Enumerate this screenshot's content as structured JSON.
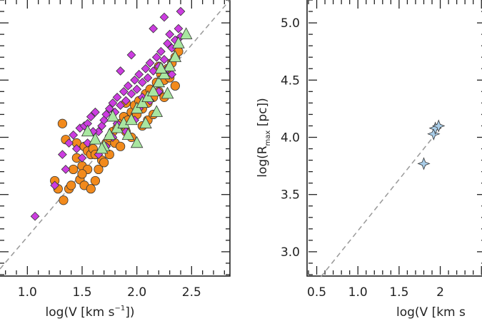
{
  "chart_data": [
    {
      "type": "scatter",
      "xlabel": {
        "pre": "log(V [km s",
        "sup": "−1",
        "post": "])"
      },
      "ylabel": "",
      "xlim": [
        0.75,
        2.85
      ],
      "ylim": [
        2.8,
        5.2
      ],
      "xticks": [
        "1.0",
        "1.5",
        "2.0",
        "2.5"
      ],
      "xtick_values": [
        1.0,
        1.5,
        2.0,
        2.5
      ],
      "yticks": [],
      "grid": false,
      "reference_line": {
        "style": "dashed",
        "points": [
          [
            0.75,
            2.85
          ],
          [
            2.85,
            5.2
          ]
        ]
      },
      "series": [
        {
          "marker": "circle",
          "color": "#f28a1c",
          "points": [
            [
              1.32,
              4.12
            ],
            [
              1.35,
              3.98
            ],
            [
              1.45,
              3.95
            ],
            [
              1.52,
              3.92
            ],
            [
              1.55,
              3.88
            ],
            [
              1.58,
              3.85
            ],
            [
              1.5,
              3.75
            ],
            [
              1.55,
              3.72
            ],
            [
              1.48,
              3.63
            ],
            [
              1.52,
              3.58
            ],
            [
              1.58,
              3.55
            ],
            [
              1.62,
              3.62
            ],
            [
              1.65,
              3.72
            ],
            [
              1.68,
              3.8
            ],
            [
              1.7,
              3.9
            ],
            [
              1.72,
              3.95
            ],
            [
              1.75,
              4.0
            ],
            [
              1.78,
              4.05
            ],
            [
              1.8,
              3.95
            ],
            [
              1.82,
              4.08
            ],
            [
              1.85,
              4.12
            ],
            [
              1.88,
              4.18
            ],
            [
              1.9,
              4.05
            ],
            [
              1.92,
              4.15
            ],
            [
              1.95,
              4.22
            ],
            [
              1.98,
              4.28
            ],
            [
              2.0,
              4.2
            ],
            [
              2.02,
              4.32
            ],
            [
              2.05,
              4.25
            ],
            [
              2.08,
              4.38
            ],
            [
              2.1,
              4.3
            ],
            [
              2.12,
              4.42
            ],
            [
              2.15,
              4.35
            ],
            [
              2.18,
              4.48
            ],
            [
              2.2,
              4.4
            ],
            [
              2.22,
              4.55
            ],
            [
              2.25,
              4.5
            ],
            [
              2.28,
              4.6
            ],
            [
              2.3,
              4.52
            ],
            [
              2.32,
              4.65
            ],
            [
              2.35,
              4.7
            ],
            [
              1.42,
              3.72
            ],
            [
              1.38,
              3.55
            ],
            [
              1.33,
              3.45
            ],
            [
              1.45,
              3.82
            ],
            [
              1.6,
              3.9
            ],
            [
              1.75,
              3.85
            ],
            [
              1.95,
              4.0
            ],
            [
              2.1,
              4.15
            ],
            [
              2.25,
              4.35
            ],
            [
              1.25,
              3.62
            ],
            [
              1.28,
              3.55
            ],
            [
              1.4,
              3.58
            ],
            [
              1.62,
              3.85
            ],
            [
              1.85,
              3.92
            ],
            [
              2.05,
              4.1
            ],
            [
              2.35,
              4.45
            ],
            [
              1.5,
              3.68
            ],
            [
              1.7,
              3.78
            ],
            [
              1.9,
              4.3
            ],
            [
              2.15,
              4.2
            ],
            [
              2.38,
              4.75
            ],
            [
              2.2,
              4.62
            ]
          ]
        },
        {
          "marker": "diamond",
          "color": "#cc3de0",
          "points": [
            [
              1.07,
              3.31
            ],
            [
              1.25,
              3.58
            ],
            [
              1.32,
              3.85
            ],
            [
              1.38,
              3.95
            ],
            [
              1.42,
              4.02
            ],
            [
              1.48,
              4.08
            ],
            [
              1.52,
              4.1
            ],
            [
              1.55,
              4.12
            ],
            [
              1.58,
              4.18
            ],
            [
              1.62,
              4.22
            ],
            [
              1.65,
              4.05
            ],
            [
              1.68,
              4.1
            ],
            [
              1.7,
              4.15
            ],
            [
              1.72,
              4.2
            ],
            [
              1.75,
              4.25
            ],
            [
              1.78,
              4.3
            ],
            [
              1.8,
              4.22
            ],
            [
              1.82,
              4.35
            ],
            [
              1.85,
              4.28
            ],
            [
              1.88,
              4.4
            ],
            [
              1.9,
              4.32
            ],
            [
              1.92,
              4.45
            ],
            [
              1.95,
              4.38
            ],
            [
              1.98,
              4.5
            ],
            [
              2.0,
              4.42
            ],
            [
              2.02,
              4.55
            ],
            [
              2.05,
              4.48
            ],
            [
              2.08,
              4.6
            ],
            [
              2.1,
              4.52
            ],
            [
              2.12,
              4.65
            ],
            [
              2.15,
              4.58
            ],
            [
              2.18,
              4.7
            ],
            [
              2.2,
              4.62
            ],
            [
              2.22,
              4.75
            ],
            [
              2.25,
              4.68
            ],
            [
              2.28,
              4.82
            ],
            [
              2.3,
              4.9
            ],
            [
              2.32,
              4.78
            ],
            [
              2.35,
              4.85
            ],
            [
              2.38,
              4.95
            ],
            [
              2.4,
              5.1
            ],
            [
              2.25,
              5.05
            ],
            [
              2.15,
              4.95
            ],
            [
              1.95,
              4.72
            ],
            [
              1.85,
              4.58
            ],
            [
              1.6,
              4.05
            ],
            [
              1.45,
              3.9
            ],
            [
              1.35,
              3.72
            ],
            [
              1.55,
              3.95
            ],
            [
              1.78,
              4.0
            ],
            [
              2.02,
              4.25
            ],
            [
              2.2,
              4.4
            ],
            [
              2.32,
              4.55
            ],
            [
              1.65,
              3.85
            ],
            [
              1.9,
              4.05
            ],
            [
              2.12,
              4.32
            ],
            [
              1.72,
              3.92
            ],
            [
              1.98,
              4.15
            ],
            [
              2.28,
              4.6
            ],
            [
              2.05,
              4.35
            ],
            [
              1.82,
              4.12
            ],
            [
              2.4,
              4.88
            ],
            [
              1.5,
              3.82
            ]
          ]
        },
        {
          "marker": "triangle",
          "color": "#a8e6a0",
          "points": [
            [
              1.55,
              4.05
            ],
            [
              1.62,
              3.98
            ],
            [
              1.7,
              3.92
            ],
            [
              1.75,
              4.02
            ],
            [
              1.82,
              4.08
            ],
            [
              1.88,
              4.12
            ],
            [
              1.95,
              4.15
            ],
            [
              2.0,
              4.25
            ],
            [
              2.05,
              4.3
            ],
            [
              2.1,
              4.35
            ],
            [
              2.15,
              4.4
            ],
            [
              2.2,
              4.48
            ],
            [
              2.25,
              4.55
            ],
            [
              2.3,
              4.62
            ],
            [
              2.38,
              4.82
            ],
            [
              2.45,
              4.9
            ],
            [
              1.92,
              4.02
            ],
            [
              2.18,
              4.22
            ],
            [
              2.28,
              4.38
            ],
            [
              1.68,
              3.9
            ],
            [
              2.35,
              4.7
            ],
            [
              2.0,
              3.95
            ],
            [
              2.08,
              4.12
            ],
            [
              1.78,
              4.18
            ],
            [
              2.22,
              4.6
            ]
          ]
        }
      ]
    },
    {
      "type": "scatter",
      "xlabel": {
        "pre": "log(V [km s",
        "sup": "",
        "post": ""
      },
      "ylabel": {
        "pre": "log(R",
        "sub": "max",
        "post": " [pc])"
      },
      "xlim": [
        0.4,
        2.55
      ],
      "ylim": [
        2.8,
        5.2
      ],
      "xticks": [
        "0.5",
        "1.0",
        "1.5",
        "2"
      ],
      "xtick_values": [
        0.5,
        1.0,
        1.5,
        2.0
      ],
      "yticks": [
        "3.0",
        "3.5",
        "4.0",
        "4.5",
        "5.0"
      ],
      "ytick_values": [
        3.0,
        3.5,
        4.0,
        4.5,
        5.0
      ],
      "grid": false,
      "reference_line": {
        "style": "dashed",
        "points": [
          [
            0.55,
            2.78
          ],
          [
            2.0,
            4.08
          ]
        ]
      },
      "series": [
        {
          "marker": "star4",
          "color": "#a9cde8",
          "points": [
            [
              1.8,
              3.77
            ],
            [
              1.92,
              4.03
            ],
            [
              1.94,
              4.08
            ],
            [
              1.98,
              4.1
            ]
          ]
        }
      ]
    }
  ]
}
